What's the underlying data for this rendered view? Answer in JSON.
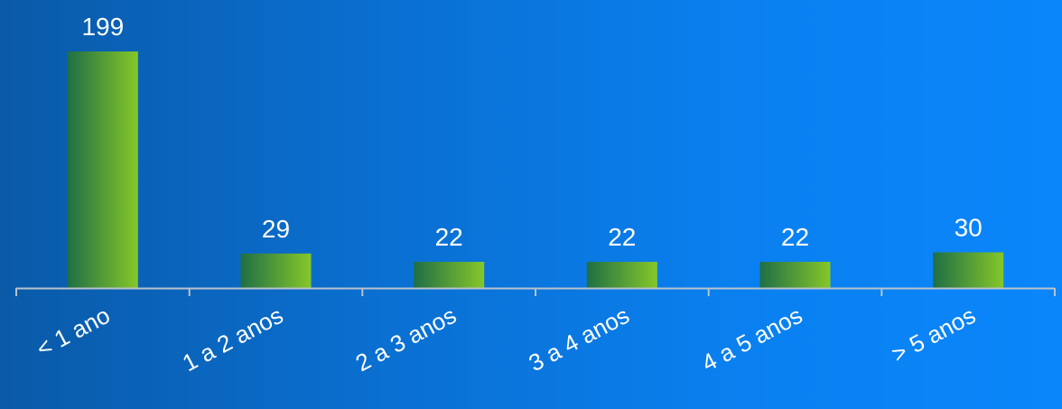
{
  "chart_data": {
    "type": "bar",
    "categories": [
      "< 1 ano",
      "1 a 2 anos",
      "2 a 3 anos",
      "3 a 4 anos",
      "4 a 5 anos",
      "> 5 anos"
    ],
    "values": [
      199,
      29,
      22,
      22,
      22,
      30
    ],
    "data_labels": [
      "199",
      "29",
      "22",
      "22",
      "22",
      "30"
    ],
    "ylim": [
      0,
      200
    ],
    "grid": false,
    "legend": "none",
    "colors": {
      "bar_dark": "#1f6f45",
      "bar_light": "#86c728",
      "axis": "#b9c2cc",
      "text": "#ffffff"
    }
  }
}
